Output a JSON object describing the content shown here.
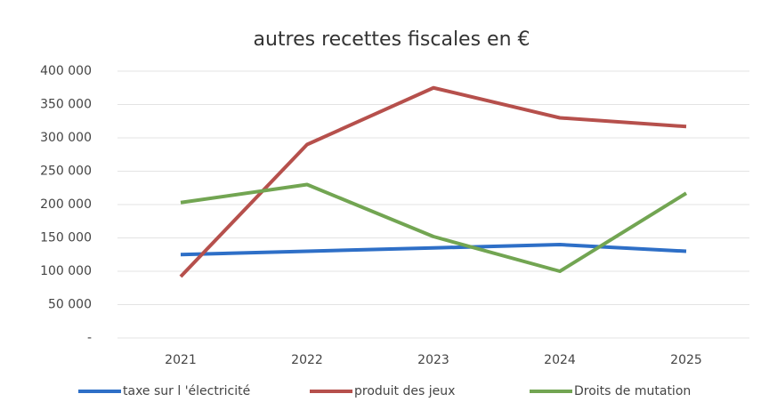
{
  "chart_data": {
    "type": "line",
    "title": "autres recettes fiscales en €",
    "categories": [
      "2021",
      "2022",
      "2023",
      "2024",
      "2025"
    ],
    "series": [
      {
        "name": "taxe sur l 'électricité",
        "color": "#2e6fc7",
        "values": [
          125000,
          130000,
          135000,
          140000,
          130000
        ]
      },
      {
        "name": "produit des jeux",
        "color": "#b6504c",
        "values": [
          92000,
          290000,
          375000,
          330000,
          317000
        ]
      },
      {
        "name": "Droits de mutation",
        "color": "#72a552",
        "values": [
          203000,
          230000,
          152000,
          100000,
          217000
        ]
      }
    ],
    "ylim": [
      0,
      400000
    ],
    "yticks": [
      {
        "value": 0,
        "label": "-"
      },
      {
        "value": 50000,
        "label": "50 000"
      },
      {
        "value": 100000,
        "label": "100 000"
      },
      {
        "value": 150000,
        "label": "150 000"
      },
      {
        "value": 200000,
        "label": "200 000"
      },
      {
        "value": 250000,
        "label": "250 000"
      },
      {
        "value": 300000,
        "label": "300 000"
      },
      {
        "value": 350000,
        "label": "350 000"
      },
      {
        "value": 400000,
        "label": "400 000"
      }
    ],
    "grid": true,
    "legend": "bottom"
  }
}
